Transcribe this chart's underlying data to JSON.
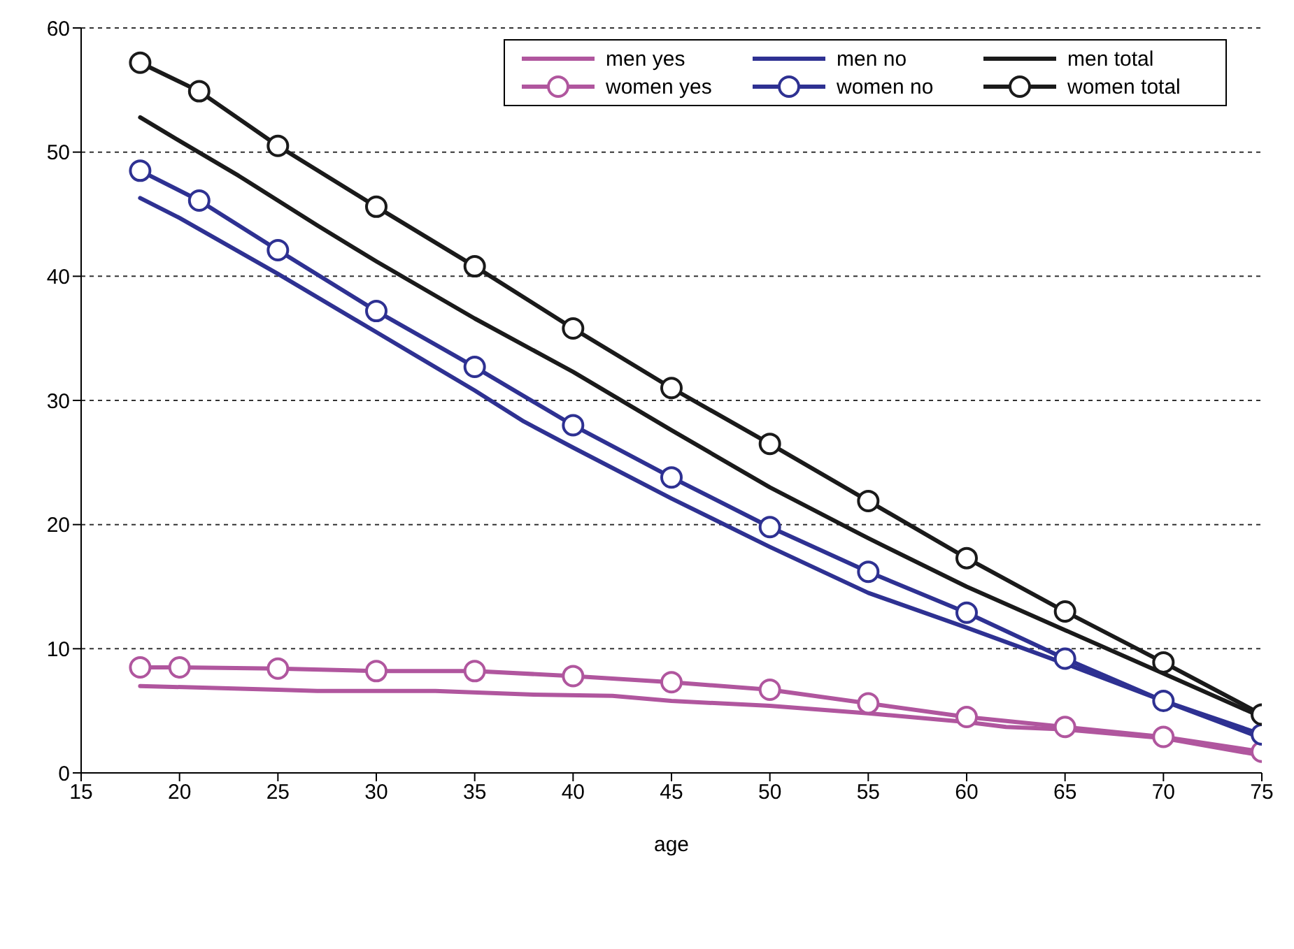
{
  "chart_data": {
    "type": "line",
    "xlabel": "age",
    "xlim": [
      15,
      75
    ],
    "xticks": [
      15,
      20,
      25,
      30,
      35,
      40,
      45,
      50,
      55,
      60,
      65,
      70,
      75
    ],
    "ylim": [
      0,
      60
    ],
    "yticks": [
      0,
      10,
      20,
      30,
      40,
      50,
      60
    ],
    "grid": "y",
    "legend": "top right",
    "series": [
      {
        "name": "men yes",
        "color": "#b0569e",
        "marker": "none",
        "x": [
          18,
          25,
          27,
          33,
          38,
          42,
          45,
          50,
          55,
          60,
          62,
          65,
          70,
          75
        ],
        "values": [
          7.0,
          6.7,
          6.6,
          6.6,
          6.3,
          6.2,
          5.8,
          5.4,
          4.8,
          4.1,
          3.7,
          3.5,
          2.8,
          1.4
        ]
      },
      {
        "name": "men no",
        "color": "#2e3192",
        "marker": "none",
        "x": [
          18,
          20,
          25,
          30,
          35,
          37.5,
          40,
          45,
          50,
          55,
          60,
          65,
          70,
          75
        ],
        "values": [
          46.3,
          44.7,
          40.2,
          35.5,
          30.8,
          28.3,
          26.2,
          22.1,
          18.2,
          14.5,
          11.7,
          8.8,
          5.8,
          2.8
        ]
      },
      {
        "name": "men total",
        "color": "#1a1a1a",
        "marker": "none",
        "x": [
          18,
          20,
          23,
          27,
          30,
          35,
          40,
          45,
          50,
          55,
          60,
          65,
          70,
          75
        ],
        "values": [
          52.8,
          50.9,
          48.1,
          44.1,
          41.2,
          36.6,
          32.3,
          27.6,
          23.0,
          18.9,
          15.0,
          11.5,
          8.0,
          4.5
        ]
      },
      {
        "name": "women yes",
        "color": "#b0569e",
        "marker": "circle",
        "x": [
          18,
          20,
          25,
          30,
          35,
          40,
          45,
          50,
          55,
          60,
          65,
          70,
          75
        ],
        "values": [
          8.5,
          8.5,
          8.4,
          8.2,
          8.2,
          7.8,
          7.3,
          6.7,
          5.6,
          4.5,
          3.7,
          2.9,
          1.7
        ]
      },
      {
        "name": "women no",
        "color": "#2e3192",
        "marker": "circle",
        "x": [
          18,
          21,
          25,
          30,
          35,
          40,
          45,
          50,
          55,
          60,
          65,
          70,
          75
        ],
        "values": [
          48.5,
          46.1,
          42.1,
          37.2,
          32.7,
          28.0,
          23.8,
          19.8,
          16.2,
          12.9,
          9.2,
          5.8,
          3.1
        ]
      },
      {
        "name": "women total",
        "color": "#1a1a1a",
        "marker": "circle",
        "x": [
          18,
          21,
          25,
          30,
          35,
          40,
          45,
          50,
          55,
          60,
          65,
          70,
          75
        ],
        "values": [
          57.2,
          54.9,
          50.5,
          45.6,
          40.8,
          35.8,
          31.0,
          26.5,
          21.9,
          17.3,
          13.0,
          8.9,
          4.7
        ]
      }
    ]
  }
}
